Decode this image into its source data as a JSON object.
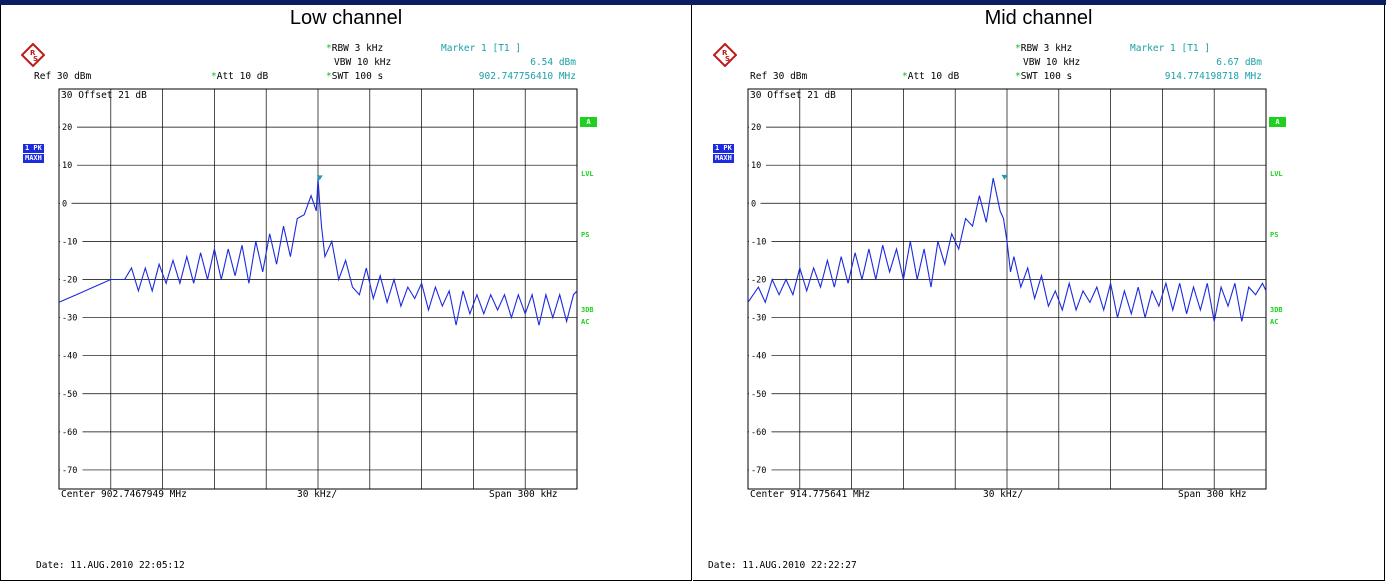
{
  "colors": {
    "trace": "#1c2ae0",
    "marker": "#1aa0a8",
    "status": "#1fd11f",
    "header": "#0a1f63"
  },
  "left": {
    "title": "Low channel",
    "rbw_label": "RBW",
    "rbw": "3 kHz",
    "vbw_label": "VBW",
    "vbw": "10 kHz",
    "swt_label": "SWT",
    "swt": "100 s",
    "marker_title": "Marker 1 [T1 ]",
    "marker_level": "6.54 dBm",
    "marker_freq": "902.747756410 MHz",
    "ref_label": "Ref",
    "ref": "30 dBm",
    "att_label": "Att",
    "att": "10 dB",
    "offset_label": "Offset",
    "offset": "21 dB",
    "top_value": "30",
    "trace_tag_1": "1 PK",
    "trace_tag_2": "MAXH",
    "side_a": "A",
    "side_lvl": "LVL",
    "side_ps": "PS",
    "side_3db": "3DB",
    "side_ac": "AC",
    "center": "Center  902.7467949 MHz",
    "div": "30 kHz/",
    "span": "Span  300 kHz",
    "date": "Date: 11.AUG.2010  22:05:12"
  },
  "right": {
    "title": "Mid channel",
    "rbw_label": "RBW",
    "rbw": "3 kHz",
    "vbw_label": "VBW",
    "vbw": "10 kHz",
    "swt_label": "SWT",
    "swt": "100 s",
    "marker_title": "Marker 1 [T1 ]",
    "marker_level": "6.67 dBm",
    "marker_freq": "914.774198718 MHz",
    "ref_label": "Ref",
    "ref": "30 dBm",
    "att_label": "Att",
    "att": "10 dB",
    "offset_label": "Offset",
    "offset": "21 dB",
    "top_value": "30",
    "trace_tag_1": "1 PK",
    "trace_tag_2": "MAXH",
    "side_a": "A",
    "side_lvl": "LVL",
    "side_ps": "PS",
    "side_3db": "3DB",
    "side_ac": "AC",
    "center": "Center  914.775641 MHz",
    "div": "30 kHz/",
    "span": "Span  300 kHz",
    "date": "Date: 11.AUG.2010  22:22:27"
  },
  "chart_data": [
    {
      "type": "line",
      "title": "Low channel",
      "xlabel": "",
      "ylabel": "",
      "y_ticks": [
        "20",
        "10",
        "0",
        "-10",
        "-20",
        "-30",
        "-40",
        "-50",
        "-60",
        "-70"
      ],
      "ylim": [
        -75,
        30
      ],
      "xlim": [
        -150,
        150
      ],
      "grid": true,
      "marker": {
        "x": 0.99,
        "y": 6.54
      },
      "series": [
        {
          "x": [
            -150,
            -140,
            -130,
            -120,
            -112,
            -108,
            -104,
            -100,
            -96,
            -92,
            -88,
            -84,
            -80,
            -76,
            -72,
            -68,
            -64,
            -60,
            -56,
            -52,
            -48,
            -44,
            -40,
            -36,
            -32,
            -28,
            -24,
            -20,
            -16,
            -12,
            -8,
            -4,
            -1,
            0,
            1,
            2,
            4,
            8,
            12,
            16,
            20,
            24,
            28,
            32,
            36,
            40,
            44,
            48,
            52,
            56,
            60,
            64,
            68,
            72,
            76,
            80,
            84,
            88,
            92,
            96,
            100,
            104,
            108,
            112,
            116,
            120,
            124,
            128,
            132,
            136,
            140,
            144,
            148,
            150
          ],
          "y": [
            -26,
            -24,
            -22,
            -20,
            -20,
            -17,
            -23,
            -17,
            -23,
            -16,
            -21,
            -15,
            -21,
            -14,
            -21,
            -13,
            -20,
            -12,
            -20,
            -12,
            -19,
            -11,
            -21,
            -10,
            -18,
            -8,
            -16,
            -6,
            -14,
            -4,
            -3,
            2,
            -2,
            6.5,
            0,
            -6,
            -14,
            -10,
            -20,
            -15,
            -22,
            -24,
            -17,
            -25,
            -19,
            -26,
            -20,
            -27,
            -22,
            -25,
            -21,
            -28,
            -22,
            -27,
            -23,
            -32,
            -23,
            -29,
            -24,
            -29,
            -24,
            -28,
            -24,
            -30,
            -24,
            -29,
            -24,
            -32,
            -24,
            -30,
            -24,
            -31,
            -24,
            -23
          ]
        }
      ]
    },
    {
      "type": "line",
      "title": "Mid channel",
      "xlabel": "",
      "ylabel": "",
      "y_ticks": [
        "20",
        "10",
        "0",
        "-10",
        "-20",
        "-30",
        "-40",
        "-50",
        "-60",
        "-70"
      ],
      "ylim": [
        -75,
        30
      ],
      "xlim": [
        -150,
        150
      ],
      "grid": true,
      "marker": {
        "x": -1.44,
        "y": 6.67
      },
      "series": [
        {
          "x": [
            -150,
            -144,
            -140,
            -136,
            -132,
            -128,
            -124,
            -120,
            -116,
            -112,
            -108,
            -104,
            -100,
            -96,
            -92,
            -88,
            -84,
            -80,
            -76,
            -72,
            -68,
            -64,
            -60,
            -56,
            -52,
            -48,
            -44,
            -40,
            -36,
            -32,
            -28,
            -24,
            -20,
            -16,
            -12,
            -8,
            -4,
            -2,
            0,
            2,
            4,
            8,
            12,
            16,
            20,
            24,
            28,
            32,
            36,
            40,
            44,
            48,
            52,
            56,
            60,
            64,
            68,
            72,
            76,
            80,
            84,
            88,
            92,
            96,
            100,
            104,
            108,
            112,
            116,
            120,
            124,
            128,
            132,
            136,
            140,
            144,
            148,
            150
          ],
          "y": [
            -26,
            -22,
            -26,
            -20,
            -24,
            -20,
            -24,
            -17,
            -23,
            -17,
            -22,
            -15,
            -22,
            -14,
            -21,
            -13,
            -20,
            -12,
            -20,
            -11,
            -18,
            -12,
            -20,
            -10,
            -20,
            -12,
            -22,
            -10,
            -16,
            -8,
            -12,
            -4,
            -6,
            2,
            -5,
            6.6,
            -2,
            -4,
            -10,
            -18,
            -14,
            -22,
            -17,
            -25,
            -19,
            -27,
            -23,
            -28,
            -21,
            -28,
            -23,
            -26,
            -22,
            -28,
            -21,
            -30,
            -23,
            -29,
            -22,
            -30,
            -23,
            -27,
            -21,
            -28,
            -21,
            -29,
            -22,
            -28,
            -21,
            -31,
            -22,
            -27,
            -21,
            -31,
            -22,
            -24,
            -21,
            -23
          ]
        }
      ]
    }
  ]
}
